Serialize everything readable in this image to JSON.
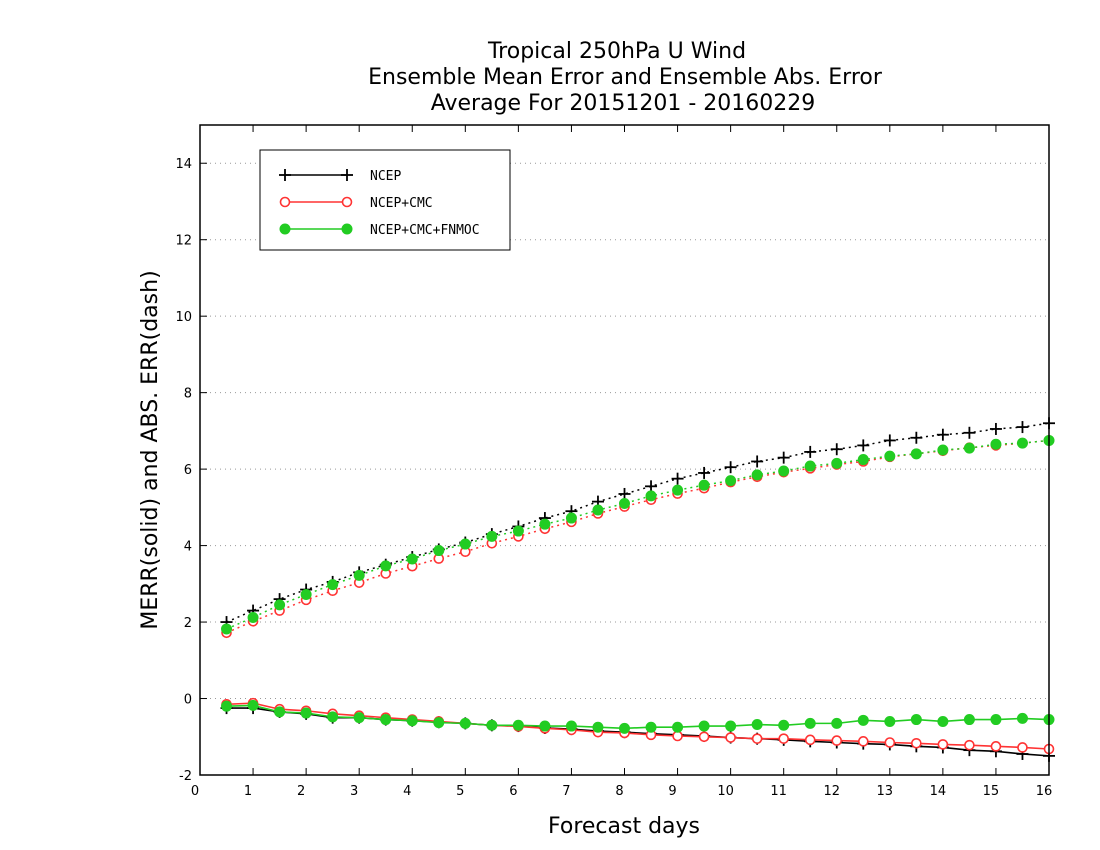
{
  "chart_data": {
    "type": "line",
    "title_lines": [
      "Tropical 250hPa U Wind",
      "Ensemble Mean Error and Ensemble Abs. Error",
      "Average For 20151201 - 20160229"
    ],
    "xlabel": "Forecast days",
    "ylabel": "MERR(solid) and ABS. ERR(dash)",
    "xlim": [
      0,
      16
    ],
    "ylim": [
      -2,
      15
    ],
    "x_ticks": [
      0,
      1,
      2,
      3,
      4,
      5,
      6,
      7,
      8,
      9,
      10,
      11,
      12,
      13,
      14,
      15,
      16
    ],
    "y_ticks": [
      -2,
      0,
      2,
      4,
      6,
      8,
      10,
      12,
      14
    ],
    "grid": "horizontal dotted",
    "legend_position": "top-left",
    "x": [
      0.5,
      1,
      1.5,
      2,
      2.5,
      3,
      3.5,
      4,
      4.5,
      5,
      5.5,
      6,
      6.5,
      7,
      7.5,
      8,
      8.5,
      9,
      9.5,
      10,
      10.5,
      11,
      11.5,
      12,
      12.5,
      13,
      13.5,
      14,
      14.5,
      15,
      15.5,
      16
    ],
    "series": [
      {
        "name": "NCEP",
        "color": "#000000",
        "marker": "plus",
        "mean_error": [
          -0.25,
          -0.25,
          -0.35,
          -0.4,
          -0.5,
          -0.5,
          -0.55,
          -0.58,
          -0.62,
          -0.65,
          -0.7,
          -0.72,
          -0.77,
          -0.8,
          -0.85,
          -0.88,
          -0.92,
          -0.95,
          -0.98,
          -1.02,
          -1.05,
          -1.08,
          -1.12,
          -1.15,
          -1.18,
          -1.2,
          -1.25,
          -1.28,
          -1.35,
          -1.38,
          -1.45,
          -1.5
        ],
        "abs_error": [
          2.0,
          2.3,
          2.6,
          2.85,
          3.05,
          3.3,
          3.5,
          3.7,
          3.9,
          4.08,
          4.3,
          4.5,
          4.72,
          4.9,
          5.15,
          5.35,
          5.55,
          5.75,
          5.9,
          6.05,
          6.2,
          6.3,
          6.45,
          6.52,
          6.62,
          6.75,
          6.82,
          6.9,
          6.95,
          7.05,
          7.1,
          7.2
        ]
      },
      {
        "name": "NCEP+CMC",
        "color": "#ff3333",
        "marker": "open-circle",
        "mean_error": [
          -0.15,
          -0.12,
          -0.28,
          -0.32,
          -0.4,
          -0.45,
          -0.5,
          -0.55,
          -0.6,
          -0.65,
          -0.7,
          -0.73,
          -0.78,
          -0.82,
          -0.88,
          -0.9,
          -0.95,
          -0.98,
          -1.0,
          -1.02,
          -1.05,
          -1.05,
          -1.08,
          -1.1,
          -1.12,
          -1.15,
          -1.17,
          -1.2,
          -1.22,
          -1.25,
          -1.28,
          -1.32
        ],
        "abs_error": [
          1.72,
          2.02,
          2.3,
          2.58,
          2.82,
          3.03,
          3.27,
          3.46,
          3.66,
          3.84,
          4.06,
          4.24,
          4.44,
          4.62,
          4.84,
          5.02,
          5.2,
          5.36,
          5.5,
          5.66,
          5.8,
          5.92,
          6.02,
          6.12,
          6.2,
          6.32,
          6.4,
          6.48,
          6.56,
          6.62,
          6.68,
          6.75
        ]
      },
      {
        "name": "NCEP+CMC+FNMOC",
        "color": "#22cc22",
        "marker": "filled-circle",
        "mean_error": [
          -0.2,
          -0.18,
          -0.35,
          -0.38,
          -0.48,
          -0.5,
          -0.55,
          -0.58,
          -0.63,
          -0.65,
          -0.7,
          -0.7,
          -0.72,
          -0.72,
          -0.75,
          -0.78,
          -0.75,
          -0.75,
          -0.72,
          -0.72,
          -0.68,
          -0.7,
          -0.65,
          -0.65,
          -0.57,
          -0.6,
          -0.55,
          -0.6,
          -0.55,
          -0.55,
          -0.52,
          -0.55
        ],
        "abs_error": [
          1.82,
          2.12,
          2.45,
          2.72,
          2.98,
          3.22,
          3.47,
          3.65,
          3.87,
          4.04,
          4.24,
          4.38,
          4.56,
          4.72,
          4.93,
          5.1,
          5.3,
          5.45,
          5.58,
          5.7,
          5.85,
          5.95,
          6.08,
          6.15,
          6.25,
          6.34,
          6.4,
          6.5,
          6.55,
          6.65,
          6.68,
          6.75
        ]
      }
    ]
  }
}
